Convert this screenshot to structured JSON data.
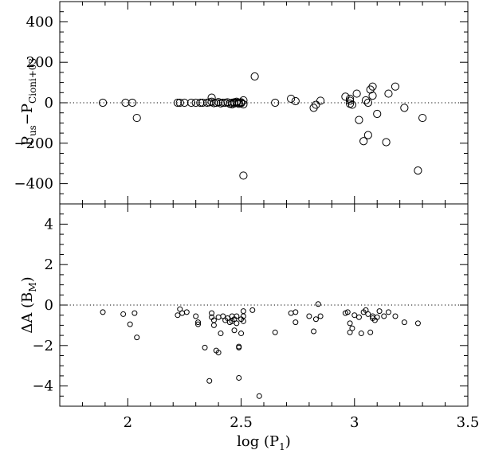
{
  "chart_data": [
    {
      "type": "scatter",
      "panel": "top",
      "ylabel": {
        "main_a": "P",
        "sub_a": "us",
        "minus": "−P",
        "sub_b": "Cioni+03"
      },
      "xlim": [
        1.7,
        3.5
      ],
      "ylim": [
        -500,
        500
      ],
      "y_ticks": [
        400,
        200,
        0,
        -200,
        -400
      ],
      "y_tick_labels": [
        "400",
        "200",
        "0",
        "−200",
        "−400"
      ],
      "reference_line_y": 0,
      "marker": "open-circle-large",
      "points": [
        [
          1.89,
          0
        ],
        [
          1.99,
          0
        ],
        [
          2.02,
          0
        ],
        [
          2.04,
          -75
        ],
        [
          2.22,
          0
        ],
        [
          2.23,
          0
        ],
        [
          2.25,
          0
        ],
        [
          2.28,
          0
        ],
        [
          2.3,
          0
        ],
        [
          2.32,
          0
        ],
        [
          2.33,
          0
        ],
        [
          2.35,
          0
        ],
        [
          2.36,
          2
        ],
        [
          2.37,
          25
        ],
        [
          2.37,
          5
        ],
        [
          2.38,
          -2
        ],
        [
          2.39,
          0
        ],
        [
          2.4,
          3
        ],
        [
          2.41,
          -3
        ],
        [
          2.42,
          0
        ],
        [
          2.43,
          0
        ],
        [
          2.44,
          2
        ],
        [
          2.45,
          -5
        ],
        [
          2.46,
          0
        ],
        [
          2.46,
          -8
        ],
        [
          2.47,
          2
        ],
        [
          2.47,
          -3
        ],
        [
          2.48,
          0
        ],
        [
          2.48,
          5
        ],
        [
          2.49,
          -5
        ],
        [
          2.49,
          0
        ],
        [
          2.5,
          2
        ],
        [
          2.5,
          -2
        ],
        [
          2.51,
          12
        ],
        [
          2.51,
          -8
        ],
        [
          2.51,
          -360
        ],
        [
          2.56,
          130
        ],
        [
          2.65,
          0
        ],
        [
          2.72,
          20
        ],
        [
          2.74,
          8
        ],
        [
          2.82,
          -25
        ],
        [
          2.83,
          -10
        ],
        [
          2.85,
          10
        ],
        [
          2.96,
          30
        ],
        [
          2.98,
          20
        ],
        [
          2.98,
          10
        ],
        [
          2.98,
          -5
        ],
        [
          2.99,
          -10
        ],
        [
          3.01,
          45
        ],
        [
          3.02,
          -85
        ],
        [
          3.04,
          -190
        ],
        [
          3.05,
          12
        ],
        [
          3.06,
          0
        ],
        [
          3.06,
          -160
        ],
        [
          3.07,
          65
        ],
        [
          3.08,
          35
        ],
        [
          3.08,
          80
        ],
        [
          3.1,
          -55
        ],
        [
          3.14,
          -195
        ],
        [
          3.15,
          45
        ],
        [
          3.18,
          80
        ],
        [
          3.22,
          -25
        ],
        [
          3.28,
          -335
        ],
        [
          3.3,
          -75
        ]
      ]
    },
    {
      "type": "scatter",
      "panel": "bottom",
      "xlabel": {
        "main": "log (P",
        "sub": "1",
        "close": ")"
      },
      "ylabel": {
        "main": "ΔA (B",
        "sub": "M",
        "close": ")"
      },
      "xlim": [
        1.7,
        3.5
      ],
      "ylim": [
        -5,
        5
      ],
      "x_ticks": [
        2,
        2.5,
        3,
        3.5
      ],
      "x_tick_labels": [
        "2",
        "2.5",
        "3",
        "3.5"
      ],
      "y_ticks": [
        4,
        2,
        0,
        -2,
        -4
      ],
      "y_tick_labels": [
        "4",
        "2",
        "0",
        "−2",
        "−4"
      ],
      "reference_line_y": 0,
      "marker": "open-circle-small",
      "points": [
        [
          1.89,
          -0.35
        ],
        [
          1.98,
          -0.45
        ],
        [
          2.01,
          -0.95
        ],
        [
          2.03,
          -0.4
        ],
        [
          2.04,
          -1.6
        ],
        [
          2.22,
          -0.5
        ],
        [
          2.23,
          -0.2
        ],
        [
          2.24,
          -0.4
        ],
        [
          2.26,
          -0.35
        ],
        [
          2.3,
          -0.55
        ],
        [
          2.31,
          -0.95
        ],
        [
          2.31,
          -0.85
        ],
        [
          2.34,
          -2.1
        ],
        [
          2.36,
          -3.75
        ],
        [
          2.37,
          -0.4
        ],
        [
          2.37,
          -0.6
        ],
        [
          2.38,
          -1.0
        ],
        [
          2.38,
          -0.75
        ],
        [
          2.39,
          -2.25
        ],
        [
          2.4,
          -2.35
        ],
        [
          2.4,
          -0.6
        ],
        [
          2.41,
          -1.4
        ],
        [
          2.42,
          -0.55
        ],
        [
          2.43,
          -0.75
        ],
        [
          2.44,
          -0.65
        ],
        [
          2.45,
          -0.85
        ],
        [
          2.46,
          -0.55
        ],
        [
          2.46,
          -0.8
        ],
        [
          2.47,
          -0.7
        ],
        [
          2.47,
          -1.25
        ],
        [
          2.48,
          -0.55
        ],
        [
          2.48,
          -0.9
        ],
        [
          2.49,
          -2.1
        ],
        [
          2.49,
          -2.05
        ],
        [
          2.49,
          -3.6
        ],
        [
          2.5,
          -1.4
        ],
        [
          2.5,
          -0.7
        ],
        [
          2.51,
          -0.55
        ],
        [
          2.51,
          -0.8
        ],
        [
          2.51,
          -0.3
        ],
        [
          2.55,
          -0.25
        ],
        [
          2.58,
          -4.5
        ],
        [
          2.65,
          -1.35
        ],
        [
          2.72,
          -0.4
        ],
        [
          2.74,
          -0.85
        ],
        [
          2.74,
          -0.35
        ],
        [
          2.8,
          -0.55
        ],
        [
          2.82,
          -1.3
        ],
        [
          2.83,
          -0.7
        ],
        [
          2.84,
          0.05
        ],
        [
          2.85,
          -0.55
        ],
        [
          2.96,
          -0.4
        ],
        [
          2.97,
          -0.35
        ],
        [
          2.98,
          -1.35
        ],
        [
          2.98,
          -0.9
        ],
        [
          2.99,
          -1.15
        ],
        [
          3.0,
          -0.5
        ],
        [
          3.02,
          -0.6
        ],
        [
          3.03,
          -1.4
        ],
        [
          3.04,
          -0.35
        ],
        [
          3.05,
          -0.25
        ],
        [
          3.06,
          -0.45
        ],
        [
          3.07,
          -1.35
        ],
        [
          3.08,
          -0.65
        ],
        [
          3.08,
          -0.55
        ],
        [
          3.09,
          -0.75
        ],
        [
          3.1,
          -0.6
        ],
        [
          3.11,
          -0.3
        ],
        [
          3.13,
          -0.55
        ],
        [
          3.15,
          -0.35
        ],
        [
          3.18,
          -0.55
        ],
        [
          3.22,
          -0.85
        ],
        [
          3.28,
          -0.9
        ]
      ]
    }
  ]
}
